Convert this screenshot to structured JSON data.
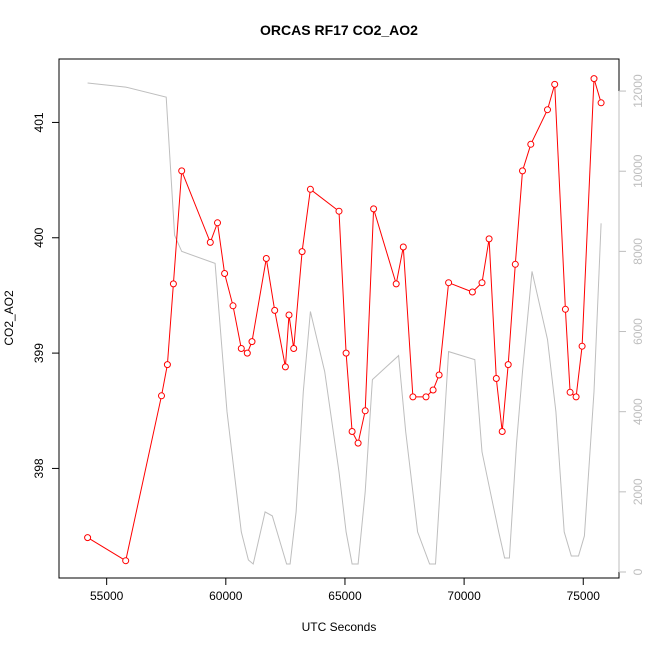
{
  "chart_data": {
    "type": "line",
    "title": "ORCAS RF17 CO2_AO2",
    "xlabel": "UTC Seconds",
    "ylabel": "CO2_AO2",
    "xlim": [
      53000,
      76500
    ],
    "ylim": [
      397.05,
      401.55
    ],
    "y2lim": [
      -150,
      12800
    ],
    "x_ticks": [
      55000,
      60000,
      65000,
      70000,
      75000
    ],
    "y_ticks": [
      398,
      399,
      400,
      401
    ],
    "y2_ticks": [
      0,
      2000,
      4000,
      6000,
      8000,
      10000,
      12000
    ],
    "colors": {
      "primary": "#ff0000",
      "secondary": "#bebebe"
    },
    "series": [
      {
        "role": "primary",
        "x": [
          54200,
          55800,
          57300,
          57550,
          57800,
          58150,
          59350,
          59650,
          59950,
          60300,
          60650,
          60900,
          61100,
          61700,
          62050,
          62500,
          62650,
          62850,
          63200,
          63550,
          64750,
          65050,
          65300,
          65550,
          65850,
          66200,
          67150,
          67450,
          67850,
          68400,
          68700,
          68950,
          69350,
          70350,
          70750,
          71050,
          71350,
          71600,
          71850,
          72150,
          72450,
          72800,
          73500,
          73800,
          74250,
          74450,
          74700,
          74950,
          75450,
          75750
        ],
        "y": [
          397.4,
          397.2,
          398.63,
          398.9,
          399.6,
          400.58,
          399.96,
          400.13,
          399.69,
          399.41,
          399.04,
          399.0,
          399.1,
          399.82,
          399.37,
          398.88,
          399.33,
          399.04,
          399.88,
          400.42,
          400.23,
          399.0,
          398.32,
          398.22,
          398.5,
          400.25,
          399.6,
          399.92,
          398.62,
          398.62,
          398.68,
          398.81,
          399.61,
          399.53,
          399.61,
          399.99,
          398.78,
          398.32,
          398.9,
          399.77,
          400.58,
          400.81,
          401.11,
          401.33,
          399.38,
          398.66,
          398.62,
          399.06,
          401.38,
          401.17
        ]
      },
      {
        "role": "secondary",
        "x": [
          54200,
          55800,
          57500,
          57850,
          58150,
          59550,
          60050,
          60650,
          60950,
          61150,
          61650,
          61950,
          62550,
          62700,
          62950,
          63250,
          63550,
          64150,
          64750,
          65050,
          65300,
          65550,
          65850,
          66150,
          67250,
          67550,
          68050,
          68550,
          68800,
          69350,
          70450,
          70750,
          71100,
          71450,
          71700,
          71900,
          72200,
          72450,
          72850,
          73500,
          73850,
          74200,
          74500,
          74800,
          75050,
          75450,
          75750
        ],
        "y": [
          12200,
          12100,
          11850,
          8400,
          8000,
          7700,
          4000,
          1000,
          300,
          200,
          1500,
          1400,
          200,
          200,
          1500,
          4500,
          6500,
          5000,
          2500,
          1000,
          200,
          200,
          2000,
          4800,
          5400,
          3500,
          1000,
          200,
          200,
          5500,
          5300,
          3000,
          2000,
          1000,
          350,
          350,
          3200,
          5000,
          7500,
          5800,
          4000,
          1000,
          400,
          400,
          900,
          4500,
          8700
        ]
      }
    ]
  }
}
